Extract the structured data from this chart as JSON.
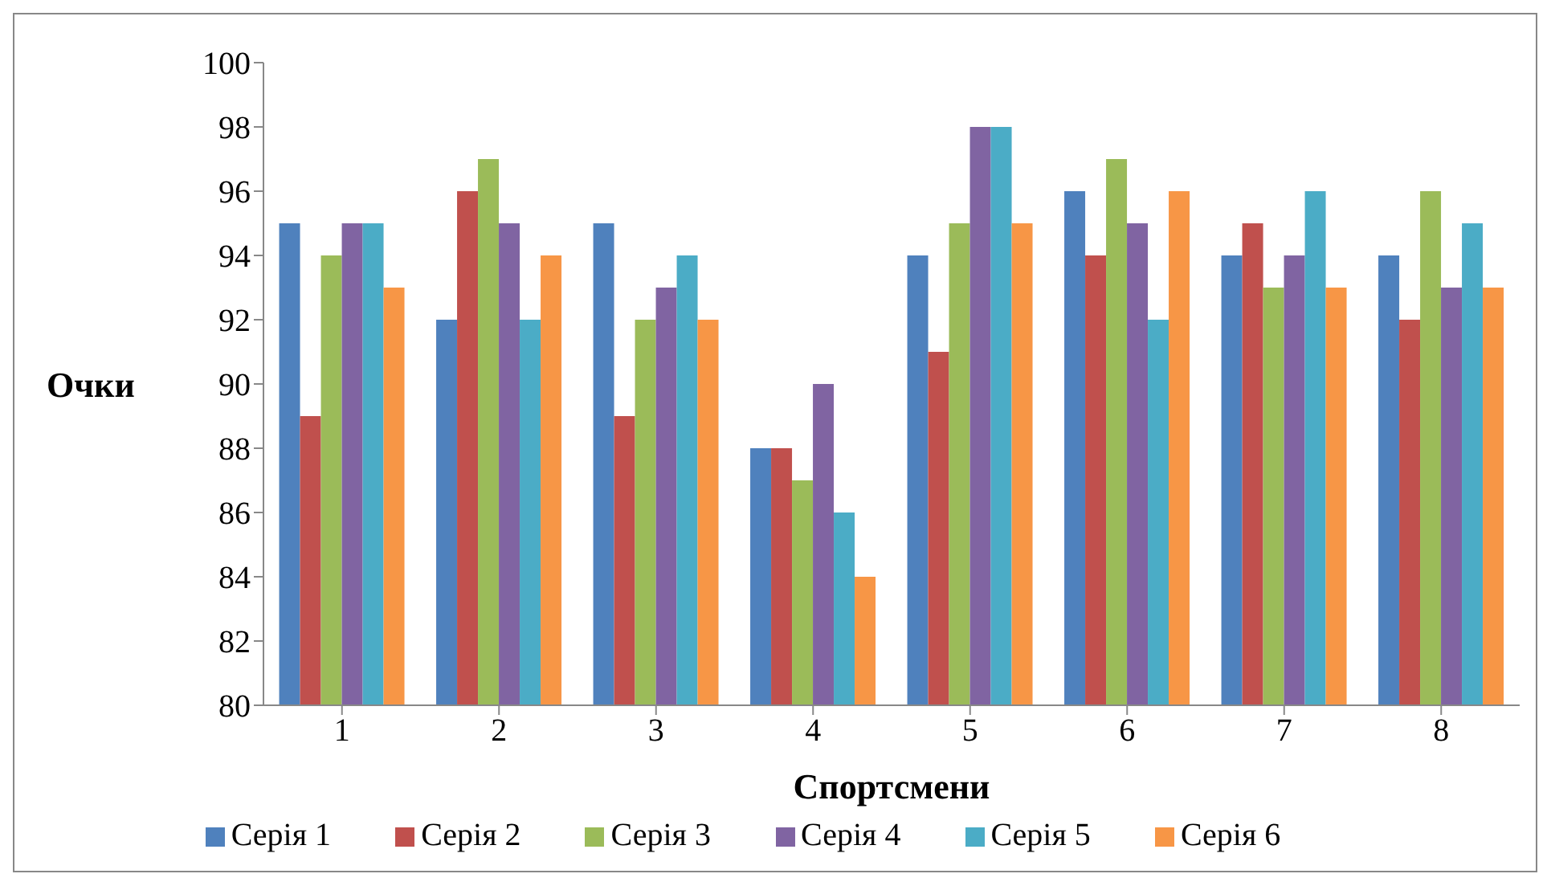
{
  "chart_data": {
    "type": "bar",
    "xlabel": "Спортсмени",
    "ylabel": "Очки",
    "categories": [
      "1",
      "2",
      "3",
      "4",
      "5",
      "6",
      "7",
      "8"
    ],
    "series": [
      {
        "name": "Серія 1",
        "color": "#4f81bd",
        "values": [
          95,
          92,
          95,
          88,
          94,
          96,
          94,
          94
        ]
      },
      {
        "name": "Серія 2",
        "color": "#c0504d",
        "values": [
          89,
          96,
          89,
          88,
          91,
          94,
          95,
          92
        ]
      },
      {
        "name": "Серія 3",
        "color": "#9bbb59",
        "values": [
          94,
          97,
          92,
          87,
          95,
          97,
          93,
          96
        ]
      },
      {
        "name": "Серія 4",
        "color": "#8064a2",
        "values": [
          95,
          95,
          93,
          90,
          98,
          95,
          94,
          93
        ]
      },
      {
        "name": "Серія 5",
        "color": "#4bacc6",
        "values": [
          95,
          92,
          94,
          86,
          98,
          92,
          96,
          95
        ]
      },
      {
        "name": "Серія 6",
        "color": "#f79646",
        "values": [
          93,
          94,
          92,
          84,
          95,
          96,
          93,
          93
        ]
      }
    ],
    "ylim": [
      80,
      100
    ],
    "yticks": [
      80,
      82,
      84,
      86,
      88,
      90,
      92,
      94,
      96,
      98,
      100
    ],
    "grid": false,
    "legend": "bottom"
  }
}
